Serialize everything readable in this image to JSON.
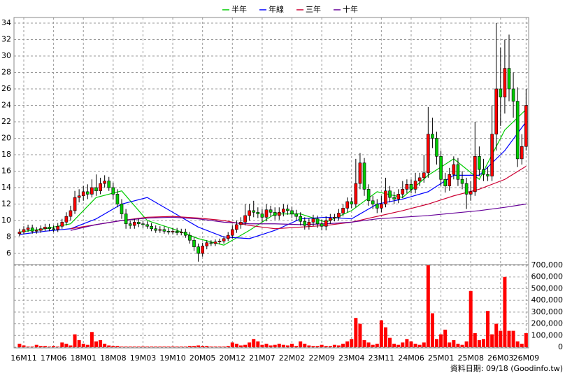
{
  "chart_data": {
    "type": "candlestick",
    "up_color": "#ff0000",
    "down_color": "#00cc00",
    "grid": true,
    "xlim": [
      -1.3,
      119.6
    ],
    "xticks": [
      {
        "value": 1,
        "label": "16M11"
      },
      {
        "value": 8,
        "label": "17M06"
      },
      {
        "value": 15,
        "label": "18M01"
      },
      {
        "value": 22,
        "label": "18M08"
      },
      {
        "value": 29,
        "label": "19M03"
      },
      {
        "value": 36,
        "label": "19M10"
      },
      {
        "value": 43,
        "label": "20M05"
      },
      {
        "value": 50,
        "label": "20M12"
      },
      {
        "value": 57,
        "label": "21M07"
      },
      {
        "value": 64,
        "label": "22M02"
      },
      {
        "value": 71,
        "label": "22M09"
      },
      {
        "value": 78,
        "label": "23M04"
      },
      {
        "value": 85,
        "label": "23M11"
      },
      {
        "value": 92,
        "label": "24M06"
      },
      {
        "value": 99,
        "label": "25M01"
      },
      {
        "value": 106,
        "label": "25M08"
      },
      {
        "value": 113,
        "label": "26M03"
      },
      {
        "value": 119,
        "label": "26M09"
      }
    ],
    "ylim": [
      4.64,
      34.68
    ],
    "yticks": [
      6,
      8,
      10,
      12,
      14,
      16,
      18,
      20,
      22,
      24,
      26,
      28,
      30,
      32,
      34
    ],
    "open": [
      8.4,
      8.6,
      8.9,
      9.1,
      8.7,
      8.8,
      9.0,
      9.2,
      9.0,
      8.9,
      9.3,
      9.8,
      10.5,
      11.2,
      12.8,
      13.0,
      13.5,
      13.2,
      14.0,
      13.6,
      14.5,
      14.8,
      14.0,
      13.2,
      12.0,
      10.8,
      9.6,
      9.4,
      9.8,
      9.6,
      9.5,
      9.3,
      9.0,
      8.8,
      8.9,
      8.7,
      8.6,
      8.7,
      8.5,
      8.6,
      8.2,
      7.6,
      6.8,
      6.0,
      6.9,
      7.3,
      7.2,
      7.4,
      7.5,
      7.8,
      8.2,
      8.9,
      9.5,
      9.8,
      10.6,
      11.2,
      11.0,
      10.8,
      10.4,
      11.3,
      11.0,
      10.6,
      11.0,
      11.4,
      11.2,
      10.8,
      10.5,
      9.9,
      9.4,
      9.8,
      10.2,
      9.6,
      9.3,
      10.0,
      10.3,
      10.4,
      10.9,
      11.5,
      12.3,
      12.0,
      14.5,
      17.0,
      13.8,
      12.4,
      12.0,
      11.5,
      12.0,
      13.6,
      12.8,
      12.6,
      13.2,
      13.8,
      14.4,
      13.8,
      14.8,
      15.2,
      15.8,
      20.5,
      20.0,
      17.8,
      15.0,
      14.2,
      15.6,
      16.8,
      15.0,
      14.5,
      13.2,
      13.5,
      17.8,
      16.2,
      15.6,
      15.4,
      20.5,
      26.0,
      25.0,
      28.5,
      26.0,
      24.5,
      17.5,
      19.0
    ],
    "high": [
      9.0,
      9.3,
      9.5,
      9.5,
      9.2,
      9.4,
      9.6,
      9.6,
      9.4,
      9.7,
      10.2,
      11.0,
      11.8,
      13.6,
      13.8,
      14.2,
      14.4,
      15.0,
      15.6,
      15.2,
      15.5,
      15.3,
      14.6,
      13.8,
      12.6,
      11.4,
      10.0,
      10.2,
      10.2,
      10.0,
      9.9,
      9.7,
      9.4,
      9.3,
      9.3,
      9.1,
      9.1,
      9.1,
      9.0,
      9.0,
      8.6,
      8.0,
      7.2,
      7.3,
      7.6,
      7.6,
      7.7,
      7.8,
      8.1,
      8.6,
      9.4,
      10.0,
      10.4,
      12.0,
      12.0,
      12.4,
      11.6,
      11.4,
      12.0,
      11.8,
      11.6,
      11.6,
      12.0,
      11.9,
      11.7,
      11.3,
      11.0,
      10.4,
      10.3,
      10.7,
      10.6,
      10.1,
      10.5,
      10.8,
      10.8,
      11.4,
      12.0,
      12.8,
      12.8,
      17.5,
      18.2,
      17.6,
      14.4,
      13.0,
      12.6,
      13.0,
      15.2,
      14.2,
      13.5,
      13.8,
      14.8,
      15.0,
      15.0,
      15.8,
      15.8,
      18.0,
      23.8,
      22.5,
      20.8,
      18.5,
      15.8,
      16.4,
      17.8,
      17.6,
      16.0,
      15.2,
      14.8,
      22.0,
      19.0,
      17.5,
      16.5,
      24.0,
      34.0,
      31.0,
      32.0,
      32.6,
      28.0,
      26.2,
      20.5,
      26.0
    ],
    "low": [
      8.1,
      8.3,
      8.6,
      8.4,
      8.4,
      8.5,
      8.7,
      8.7,
      8.6,
      8.6,
      9.0,
      9.4,
      10.0,
      10.8,
      12.2,
      12.4,
      12.6,
      12.8,
      13.0,
      13.2,
      14.0,
      13.6,
      12.6,
      11.6,
      10.2,
      9.0,
      9.0,
      9.0,
      9.2,
      9.1,
      9.0,
      8.7,
      8.5,
      8.5,
      8.4,
      8.3,
      8.3,
      8.2,
      8.2,
      7.9,
      7.2,
      6.3,
      5.0,
      5.6,
      6.5,
      6.9,
      6.9,
      7.1,
      7.2,
      7.5,
      7.8,
      8.5,
      9.0,
      9.4,
      10.0,
      10.4,
      10.3,
      9.8,
      9.9,
      10.5,
      10.1,
      10.1,
      10.5,
      10.7,
      10.3,
      10.0,
      9.4,
      8.9,
      8.9,
      9.3,
      9.1,
      8.8,
      8.8,
      9.6,
      9.9,
      10.0,
      10.5,
      11.0,
      11.5,
      11.6,
      13.8,
      13.0,
      11.8,
      11.4,
      10.9,
      11.0,
      11.6,
      12.2,
      12.0,
      12.1,
      12.7,
      13.3,
      13.3,
      13.3,
      14.2,
      14.6,
      15.2,
      18.8,
      16.8,
      14.2,
      13.4,
      13.6,
      15.0,
      14.2,
      13.8,
      11.4,
      12.4,
      13.0,
      15.4,
      14.8,
      14.8,
      14.8,
      18.5,
      21.5,
      23.0,
      24.5,
      22.5,
      16.5,
      16.8,
      18.5
    ],
    "close": [
      8.6,
      8.9,
      9.1,
      8.7,
      8.8,
      9.0,
      9.2,
      9.0,
      8.9,
      9.3,
      9.8,
      10.5,
      11.2,
      12.8,
      13.0,
      13.5,
      13.2,
      14.0,
      13.6,
      14.5,
      14.8,
      14.0,
      13.2,
      12.0,
      10.8,
      9.6,
      9.4,
      9.8,
      9.6,
      9.5,
      9.3,
      9.0,
      8.8,
      8.9,
      8.7,
      8.6,
      8.7,
      8.5,
      8.6,
      8.2,
      7.6,
      6.8,
      6.0,
      6.9,
      7.3,
      7.2,
      7.4,
      7.5,
      7.8,
      8.2,
      8.9,
      9.5,
      9.8,
      10.6,
      11.2,
      11.0,
      10.8,
      10.4,
      11.3,
      11.0,
      10.6,
      11.0,
      11.4,
      11.2,
      10.8,
      10.5,
      9.9,
      9.4,
      9.8,
      10.2,
      9.6,
      9.3,
      10.0,
      10.3,
      10.4,
      10.9,
      11.5,
      12.3,
      12.0,
      14.5,
      17.0,
      13.8,
      12.4,
      12.0,
      11.5,
      12.0,
      13.6,
      12.8,
      12.6,
      13.2,
      13.8,
      14.4,
      13.8,
      14.8,
      15.2,
      15.8,
      20.5,
      20.0,
      17.8,
      15.0,
      14.2,
      15.6,
      16.8,
      15.0,
      14.5,
      13.2,
      13.5,
      17.8,
      16.2,
      15.6,
      15.4,
      20.5,
      26.0,
      25.0,
      28.5,
      26.0,
      24.5,
      17.5,
      19.0,
      24.0
    ],
    "series": [
      {
        "name": "半年",
        "color": "#00cc00",
        "x": [
          0,
          6,
          12,
          18,
          24,
          30,
          36,
          42,
          48,
          54,
          60,
          66,
          72,
          78,
          84,
          90,
          96,
          102,
          108,
          114,
          119
        ],
        "values": [
          8.6,
          9.0,
          9.6,
          12.8,
          13.6,
          10.0,
          9.0,
          7.8,
          7.0,
          8.8,
          10.8,
          10.8,
          9.8,
          11.2,
          13.5,
          12.8,
          15.5,
          17.5,
          15.0,
          21.0,
          23.5
        ]
      },
      {
        "name": "年線",
        "color": "#0000ff",
        "x": [
          0,
          6,
          12,
          18,
          24,
          30,
          36,
          42,
          48,
          54,
          60,
          66,
          72,
          78,
          84,
          90,
          96,
          102,
          108,
          114,
          119
        ],
        "values": [
          8.3,
          8.7,
          9.0,
          10.2,
          12.0,
          12.8,
          11.0,
          9.2,
          8.0,
          7.8,
          8.8,
          10.2,
          10.4,
          10.2,
          12.0,
          12.6,
          13.5,
          15.5,
          15.5,
          18.5,
          22.0
        ]
      },
      {
        "name": "三年",
        "color": "#cc0033",
        "x": [
          12,
          18,
          24,
          30,
          36,
          42,
          48,
          54,
          60,
          66,
          72,
          78,
          84,
          90,
          96,
          102,
          108,
          114,
          119
        ],
        "values": [
          9.0,
          9.5,
          10.0,
          10.4,
          10.5,
          10.3,
          10.0,
          9.4,
          9.0,
          9.2,
          9.4,
          9.8,
          10.5,
          11.2,
          12.0,
          13.0,
          13.8,
          15.0,
          16.6
        ]
      },
      {
        "name": "十年",
        "color": "#660099",
        "x": [
          12,
          18,
          24,
          30,
          36,
          42,
          48,
          54,
          60,
          66,
          72,
          78,
          84,
          90,
          96,
          102,
          108,
          114,
          119
        ],
        "values": [
          8.8,
          9.5,
          10.0,
          10.3,
          10.4,
          10.2,
          9.8,
          9.6,
          9.6,
          9.5,
          9.6,
          9.8,
          10.2,
          10.4,
          10.6,
          10.9,
          11.2,
          11.6,
          12.0
        ]
      }
    ],
    "volume": {
      "color": "#ff0000",
      "ylim": [
        0,
        700000
      ],
      "yticks": [
        0,
        {
          "value": 100000,
          "label": "100,000"
        },
        {
          "value": 200000,
          "label": "200,000"
        },
        {
          "value": 300000,
          "label": "300,000"
        },
        {
          "value": 400000,
          "label": "400,000"
        },
        {
          "value": 500000,
          "label": "500,000"
        },
        {
          "value": 600000,
          "label": "600,000"
        },
        {
          "value": 700000,
          "label": "700,000"
        }
      ],
      "values": [
        30000,
        15000,
        5000,
        5000,
        20000,
        10000,
        10000,
        5000,
        10000,
        5000,
        40000,
        30000,
        15000,
        110000,
        60000,
        30000,
        20000,
        130000,
        50000,
        60000,
        30000,
        15000,
        10000,
        10000,
        5000,
        5000,
        5000,
        5000,
        5000,
        5000,
        5000,
        5000,
        5000,
        5000,
        5000,
        5000,
        5000,
        5000,
        5000,
        5000,
        10000,
        10000,
        15000,
        10000,
        10000,
        5000,
        5000,
        5000,
        5000,
        10000,
        40000,
        30000,
        15000,
        20000,
        40000,
        70000,
        50000,
        20000,
        30000,
        15000,
        20000,
        30000,
        20000,
        15000,
        30000,
        10000,
        50000,
        30000,
        15000,
        10000,
        10000,
        20000,
        10000,
        10000,
        20000,
        15000,
        30000,
        50000,
        70000,
        250000,
        200000,
        60000,
        40000,
        20000,
        30000,
        230000,
        170000,
        80000,
        30000,
        20000,
        40000,
        70000,
        50000,
        30000,
        20000,
        40000,
        700000,
        290000,
        70000,
        110000,
        150000,
        40000,
        60000,
        30000,
        20000,
        50000,
        480000,
        120000,
        60000,
        70000,
        310000,
        110000,
        200000,
        140000,
        600000,
        140000,
        140000,
        50000,
        30000,
        120000
      ]
    },
    "source": "資料日期: 09/18 (Goodinfo.tw)"
  }
}
